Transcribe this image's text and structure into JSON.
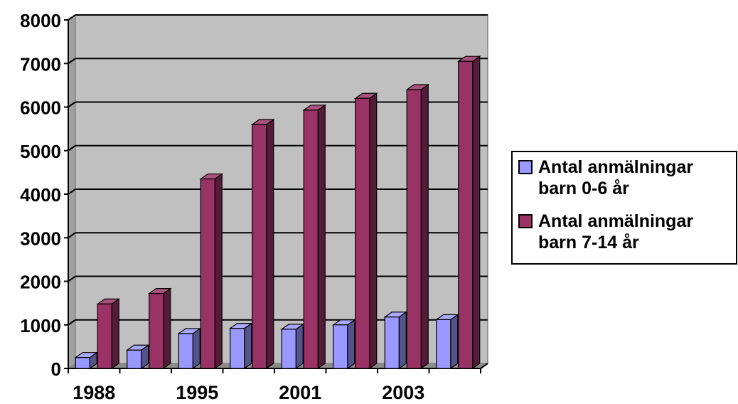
{
  "chart_data": {
    "type": "bar",
    "style": "3d-clustered-column",
    "categories": [
      "1988",
      "",
      "1995",
      "",
      "2001",
      "",
      "2003",
      ""
    ],
    "x_tick_labels": [
      "1988",
      "1995",
      "2001",
      "2003"
    ],
    "series": [
      {
        "name": "Antal anmälningar barn 0-6 år",
        "color": "#9999ff",
        "values": [
          250,
          420,
          800,
          920,
          900,
          1000,
          1180,
          1120
        ]
      },
      {
        "name": "Antal anmälningar barn 7-14 år",
        "color": "#993366",
        "values": [
          1480,
          1720,
          4350,
          5600,
          5930,
          6200,
          6400,
          7050
        ]
      }
    ],
    "y_ticks": [
      0,
      1000,
      2000,
      3000,
      4000,
      5000,
      6000,
      7000,
      8000
    ],
    "ylim": [
      0,
      8000
    ],
    "grid": true,
    "legend_position": "right",
    "plot_background": "#c0c0c0"
  }
}
